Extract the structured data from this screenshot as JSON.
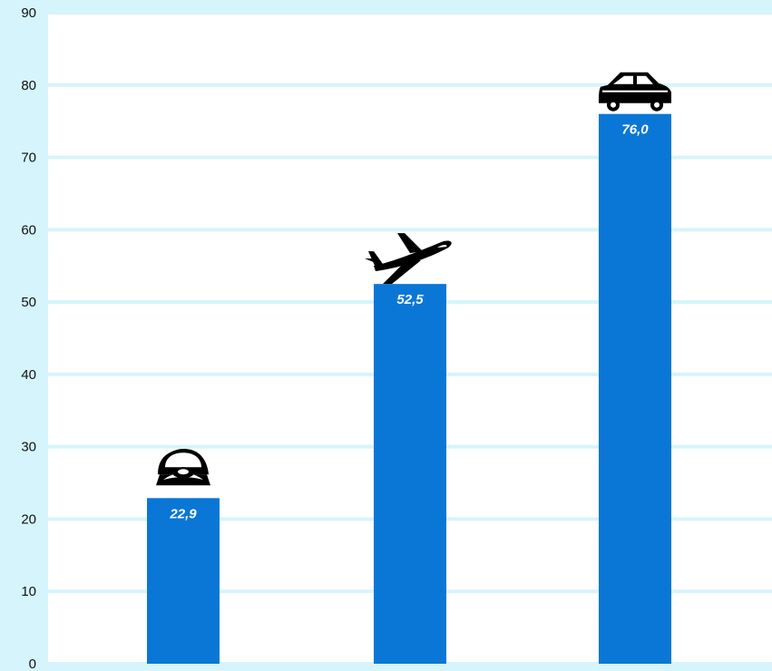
{
  "chart_data": {
    "type": "bar",
    "title": "",
    "xlabel": "",
    "ylabel": "",
    "categories": [
      "",
      "",
      ""
    ],
    "category_icons": [
      "ship-icon",
      "airplane-icon",
      "car-icon"
    ],
    "values": [
      22.9,
      52.5,
      76.0
    ],
    "value_labels": [
      "22,9",
      "52,5",
      "76,0"
    ],
    "ylim": [
      0,
      90
    ],
    "yticks": [
      0,
      10,
      20,
      30,
      40,
      50,
      60,
      70,
      80,
      90
    ],
    "grid": "alternating horizontal bands",
    "bar_color": "#0a77d6",
    "band_colors": [
      "#ffffff",
      "#d6f4fb"
    ],
    "label_color": "#ffffff"
  }
}
